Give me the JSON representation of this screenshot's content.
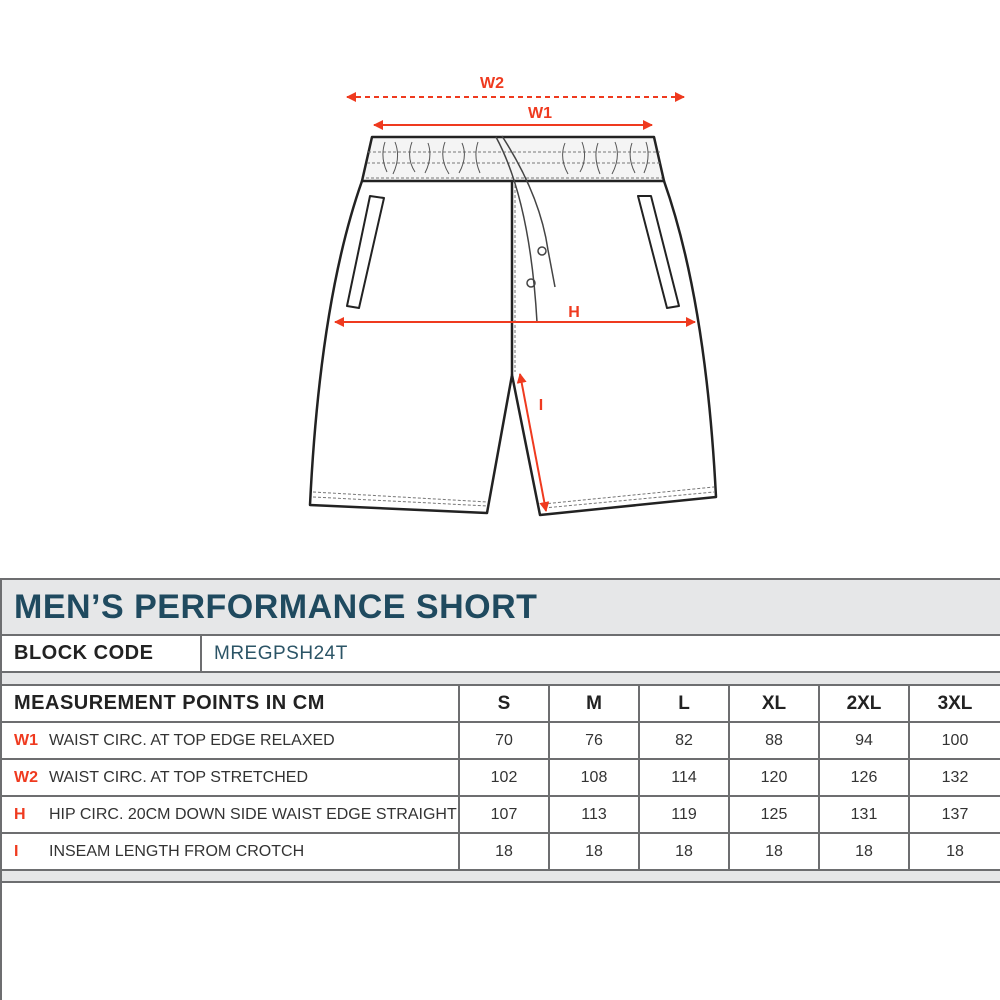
{
  "diagram": {
    "labels": {
      "w2": "W2",
      "w1": "W1",
      "h": "H",
      "i": "I"
    },
    "accent_color": "#ef3a1f"
  },
  "table": {
    "title": "MEN’S PERFORMANCE SHORT",
    "block_code_label": "BLOCK CODE",
    "block_code_value": "MREGPSH24T",
    "header": "MEASUREMENT POINTS IN CM",
    "sizes": [
      "S",
      "M",
      "L",
      "XL",
      "2XL",
      "3XL"
    ],
    "rows": [
      {
        "code": "W1",
        "label": "WAIST CIRC. AT TOP EDGE RELAXED",
        "values": [
          "70",
          "76",
          "82",
          "88",
          "94",
          "100"
        ]
      },
      {
        "code": "W2",
        "label": "WAIST CIRC. AT TOP STRETCHED",
        "values": [
          "102",
          "108",
          "114",
          "120",
          "126",
          "132"
        ]
      },
      {
        "code": "H",
        "label": "HIP CIRC. 20CM DOWN SIDE WAIST EDGE STRAIGHT",
        "values": [
          "107",
          "113",
          "119",
          "125",
          "131",
          "137"
        ]
      },
      {
        "code": "I",
        "label": "INSEAM LENGTH FROM CROTCH",
        "values": [
          "18",
          "18",
          "18",
          "18",
          "18",
          "18"
        ]
      }
    ],
    "title_color": "#1f4a5f"
  }
}
